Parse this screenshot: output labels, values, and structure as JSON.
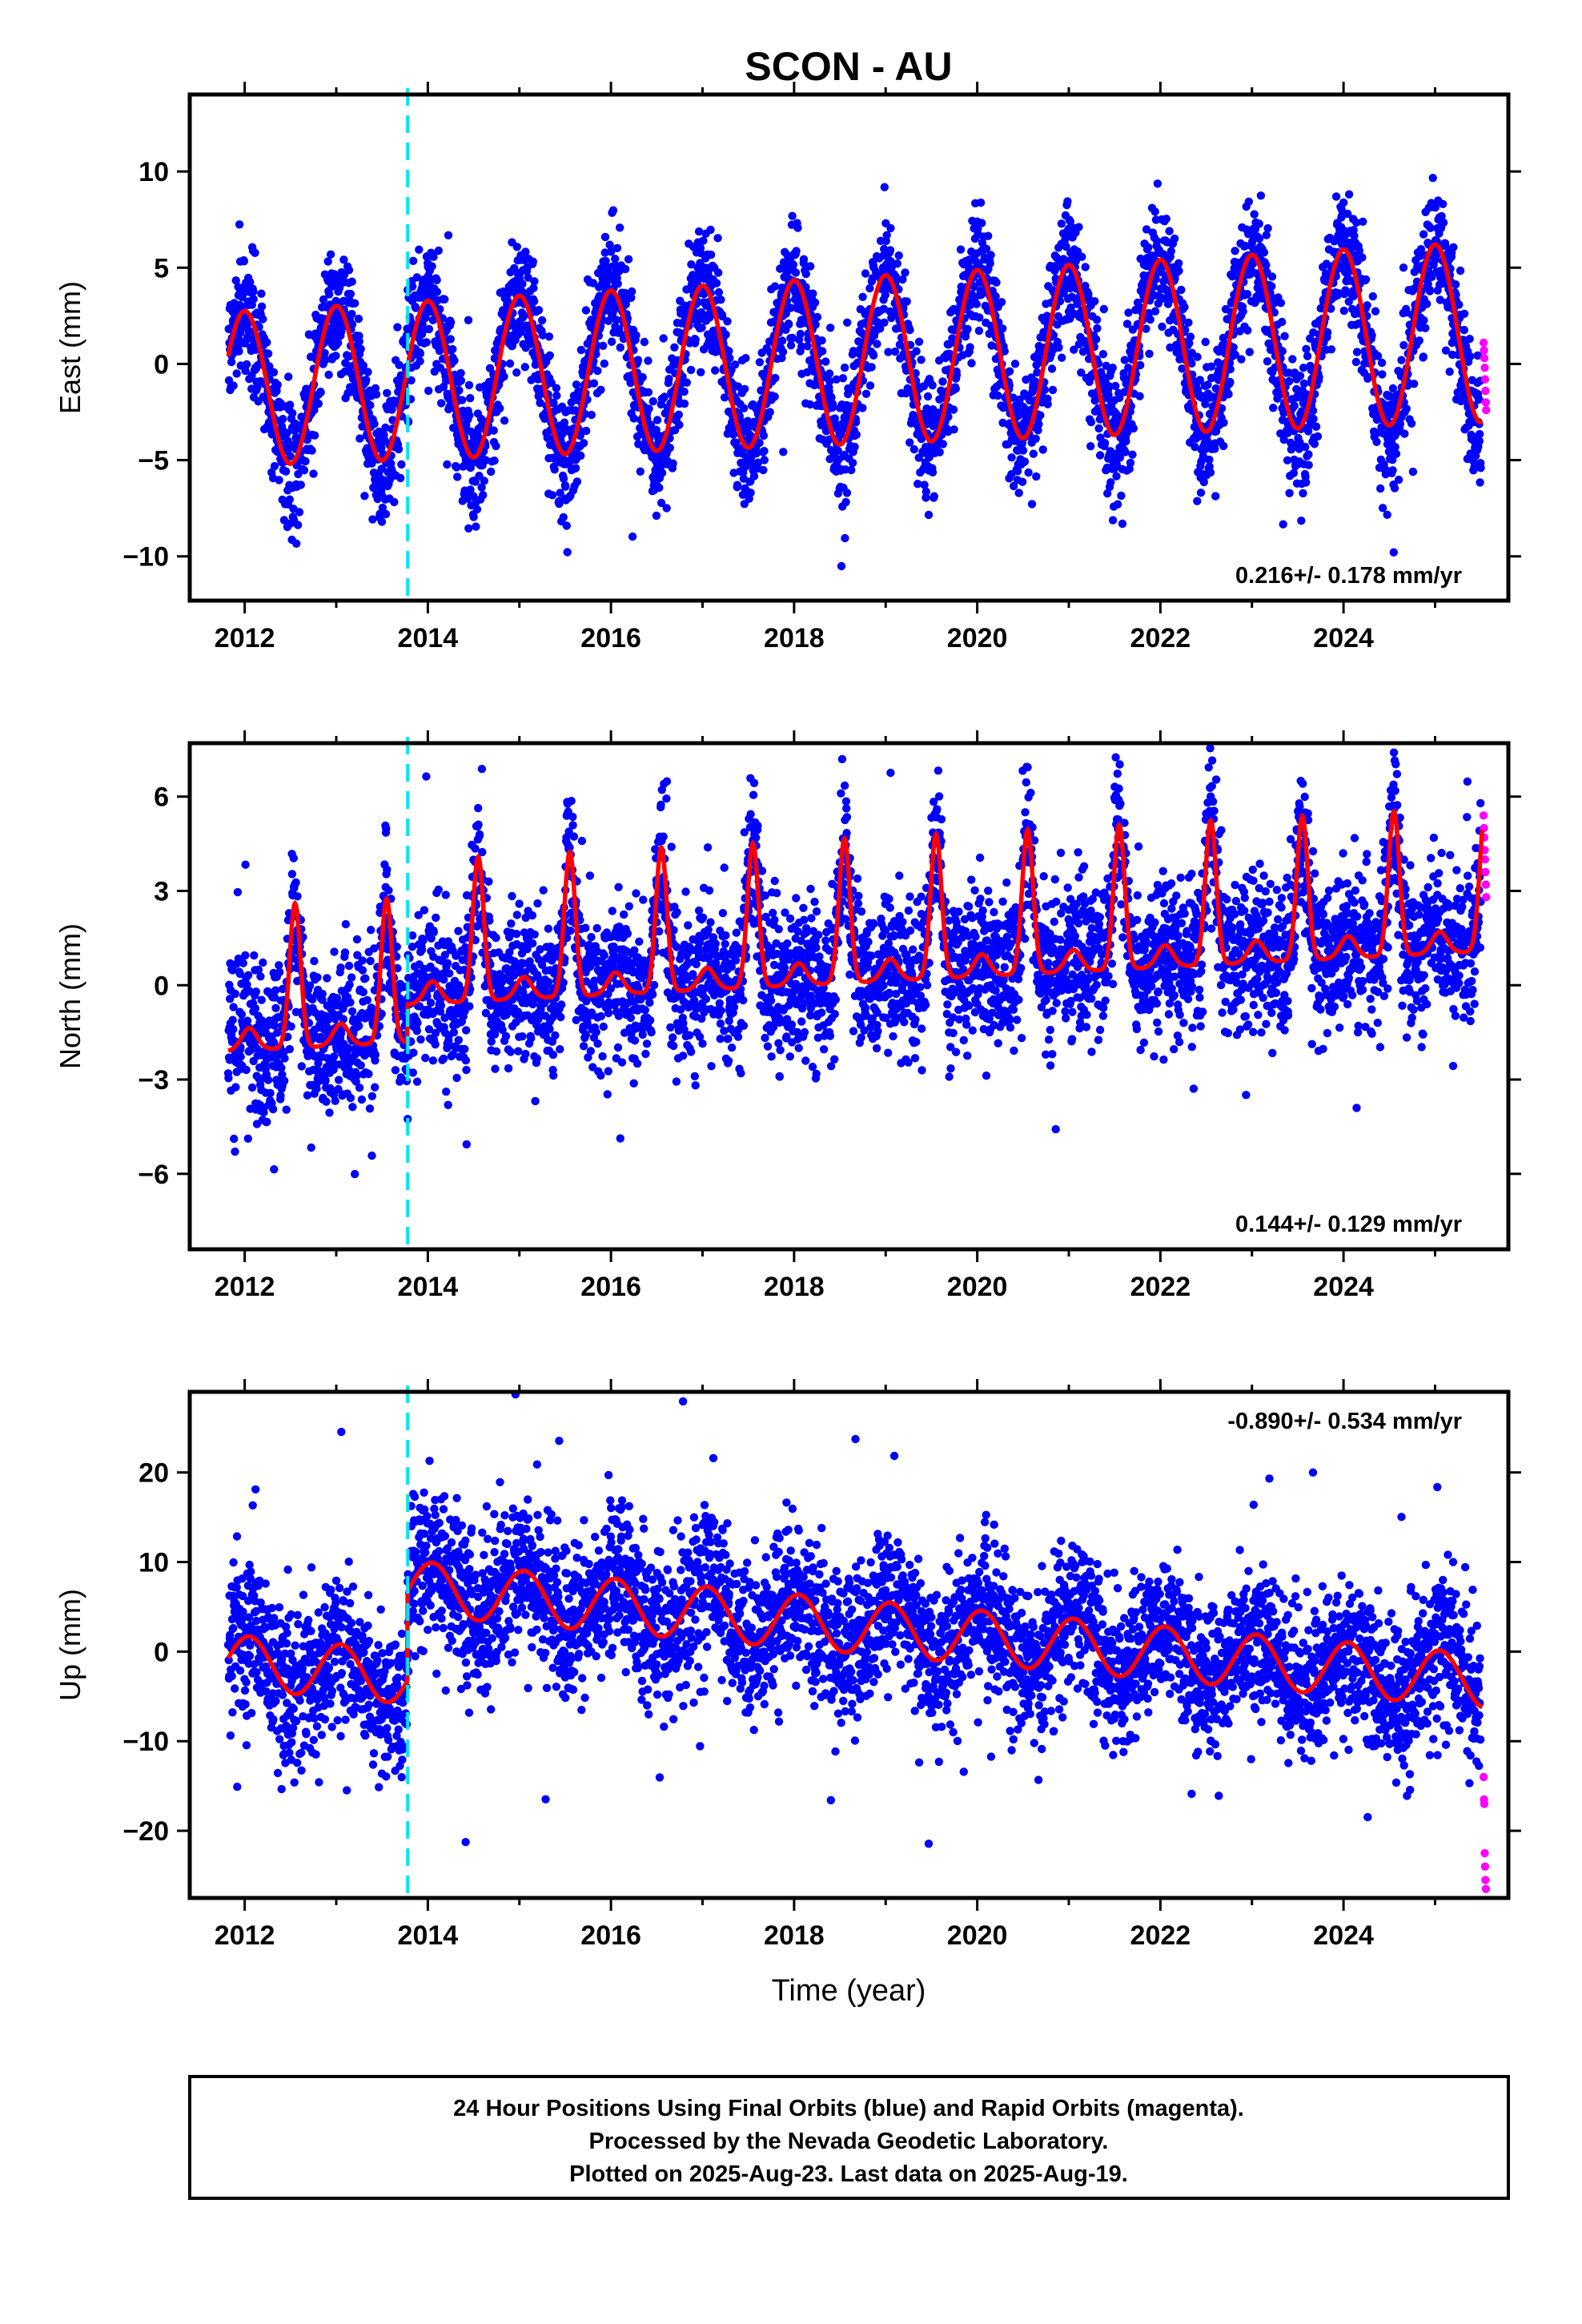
{
  "title": "SCON - AU",
  "x_axis_label": "Time (year)",
  "colors": {
    "final": "#0000ff",
    "rapid": "#ff00ff",
    "model": "#ff0000",
    "event": "#00e5ee"
  },
  "footer": {
    "line1": "24 Hour Positions Using Final Orbits (blue) and Rapid Orbits (magenta).",
    "line2": "Processed by the Nevada Geodetic Laboratory.",
    "line3": "Plotted on 2025-Aug-23. Last data on 2025-Aug-19."
  },
  "chart_data": [
    {
      "type": "scatter",
      "component": "east",
      "ylabel": "East (mm)",
      "xlim": [
        2011.4,
        2025.8
      ],
      "ylim": [
        -12.3,
        14.0
      ],
      "x_ticks": [
        2012,
        2014,
        2016,
        2018,
        2020,
        2022,
        2024
      ],
      "y_ticks": [
        -10,
        -5,
        0,
        5,
        10
      ],
      "y_tick_labels": [
        "−10",
        "−5",
        "0",
        "5",
        "10"
      ],
      "rate_text": "0.216+/- 0.178 mm/yr",
      "rate_position": "bottom-right",
      "event_line_x": 2013.78,
      "data_start": 2011.82,
      "data_end": 2025.5,
      "rapid_start": 2025.53,
      "model": {
        "offset": -1.3,
        "trend": 0.216,
        "annual_amp": 4.0,
        "annual_amp_trend": 0.05,
        "phase_year": 0.0,
        "noise_sd": 1.6
      },
      "rapid_values": [
        1.1,
        0.7,
        0.3,
        -0.2,
        -0.8,
        -1.4,
        -2.0,
        -2.4
      ]
    },
    {
      "type": "scatter",
      "component": "north",
      "ylabel": "North (mm)",
      "xlim": [
        2011.4,
        2025.8
      ],
      "ylim": [
        -8.4,
        7.7
      ],
      "x_ticks": [
        2012,
        2014,
        2016,
        2018,
        2020,
        2022,
        2024
      ],
      "y_ticks": [
        -6,
        -3,
        0,
        3,
        6
      ],
      "y_tick_labels": [
        "−6",
        "−3",
        "0",
        "3",
        "6"
      ],
      "rate_text": "0.144+/- 0.129 mm/yr",
      "rate_position": "bottom-right",
      "event_line_x": 2013.78,
      "data_start": 2011.82,
      "data_end": 2025.5,
      "rapid_start": 2025.53,
      "model": {
        "offset": -2.1,
        "trend": 0.144,
        "step_at_event": 1.2,
        "peak_amp": 4.6,
        "noise_sd": 1.2
      },
      "rapid_values": [
        5.4,
        5.0,
        4.7,
        4.3,
        4.0,
        3.6,
        3.2,
        2.8
      ]
    },
    {
      "type": "scatter",
      "component": "up",
      "ylabel": "Up (mm)",
      "xlim": [
        2011.4,
        2025.8
      ],
      "ylim": [
        -27.5,
        29.0
      ],
      "x_ticks": [
        2012,
        2014,
        2016,
        2018,
        2020,
        2022,
        2024
      ],
      "y_ticks": [
        -20,
        -10,
        0,
        10,
        20
      ],
      "y_tick_labels": [
        "−20",
        "−10",
        "0",
        "10",
        "20"
      ],
      "rate_text": "-0.890+/- 0.534 mm/yr",
      "rate_position": "top-right",
      "event_line_x": 2013.78,
      "data_start": 2011.82,
      "data_end": 2025.5,
      "rapid_start": 2025.53,
      "model": {
        "offset": 4.9,
        "trend": -0.89,
        "step_at_event": 10.0,
        "annual_amp": 3.0,
        "noise_sd": 4.3
      },
      "rapid_values": [
        -14.0,
        -16.5,
        -17.0,
        -22.5,
        -24.0,
        -25.5,
        -26.5
      ]
    }
  ]
}
